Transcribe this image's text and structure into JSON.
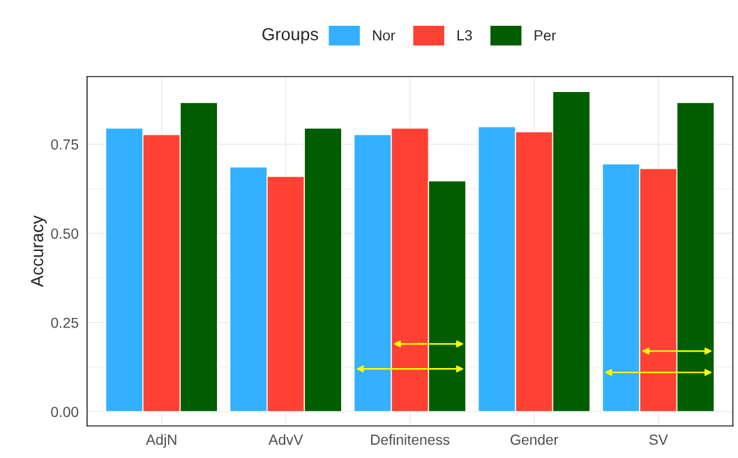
{
  "chart_data": {
    "type": "bar",
    "ylabel": "Accuracy",
    "legend_title": "Groups",
    "categories": [
      "AdjN",
      "AdvV",
      "Definiteness",
      "Gender",
      "SV"
    ],
    "series": [
      {
        "name": "Nor",
        "color": "#33b0ff",
        "values": [
          0.795,
          0.686,
          0.777,
          0.799,
          0.695
        ]
      },
      {
        "name": "L3",
        "color": "#ff4133",
        "values": [
          0.777,
          0.66,
          0.795,
          0.785,
          0.682
        ]
      },
      {
        "name": "Per",
        "color": "#005d00",
        "values": [
          0.867,
          0.795,
          0.647,
          0.898,
          0.867
        ]
      }
    ],
    "ylim": [
      -0.04,
      0.94
    ],
    "yticks": [
      {
        "value": 0,
        "label": "0.00"
      },
      0.25,
      {
        "value": 0.5,
        "label": "0.50"
      },
      0.75
    ],
    "grid": true,
    "legend": "top"
  }
}
